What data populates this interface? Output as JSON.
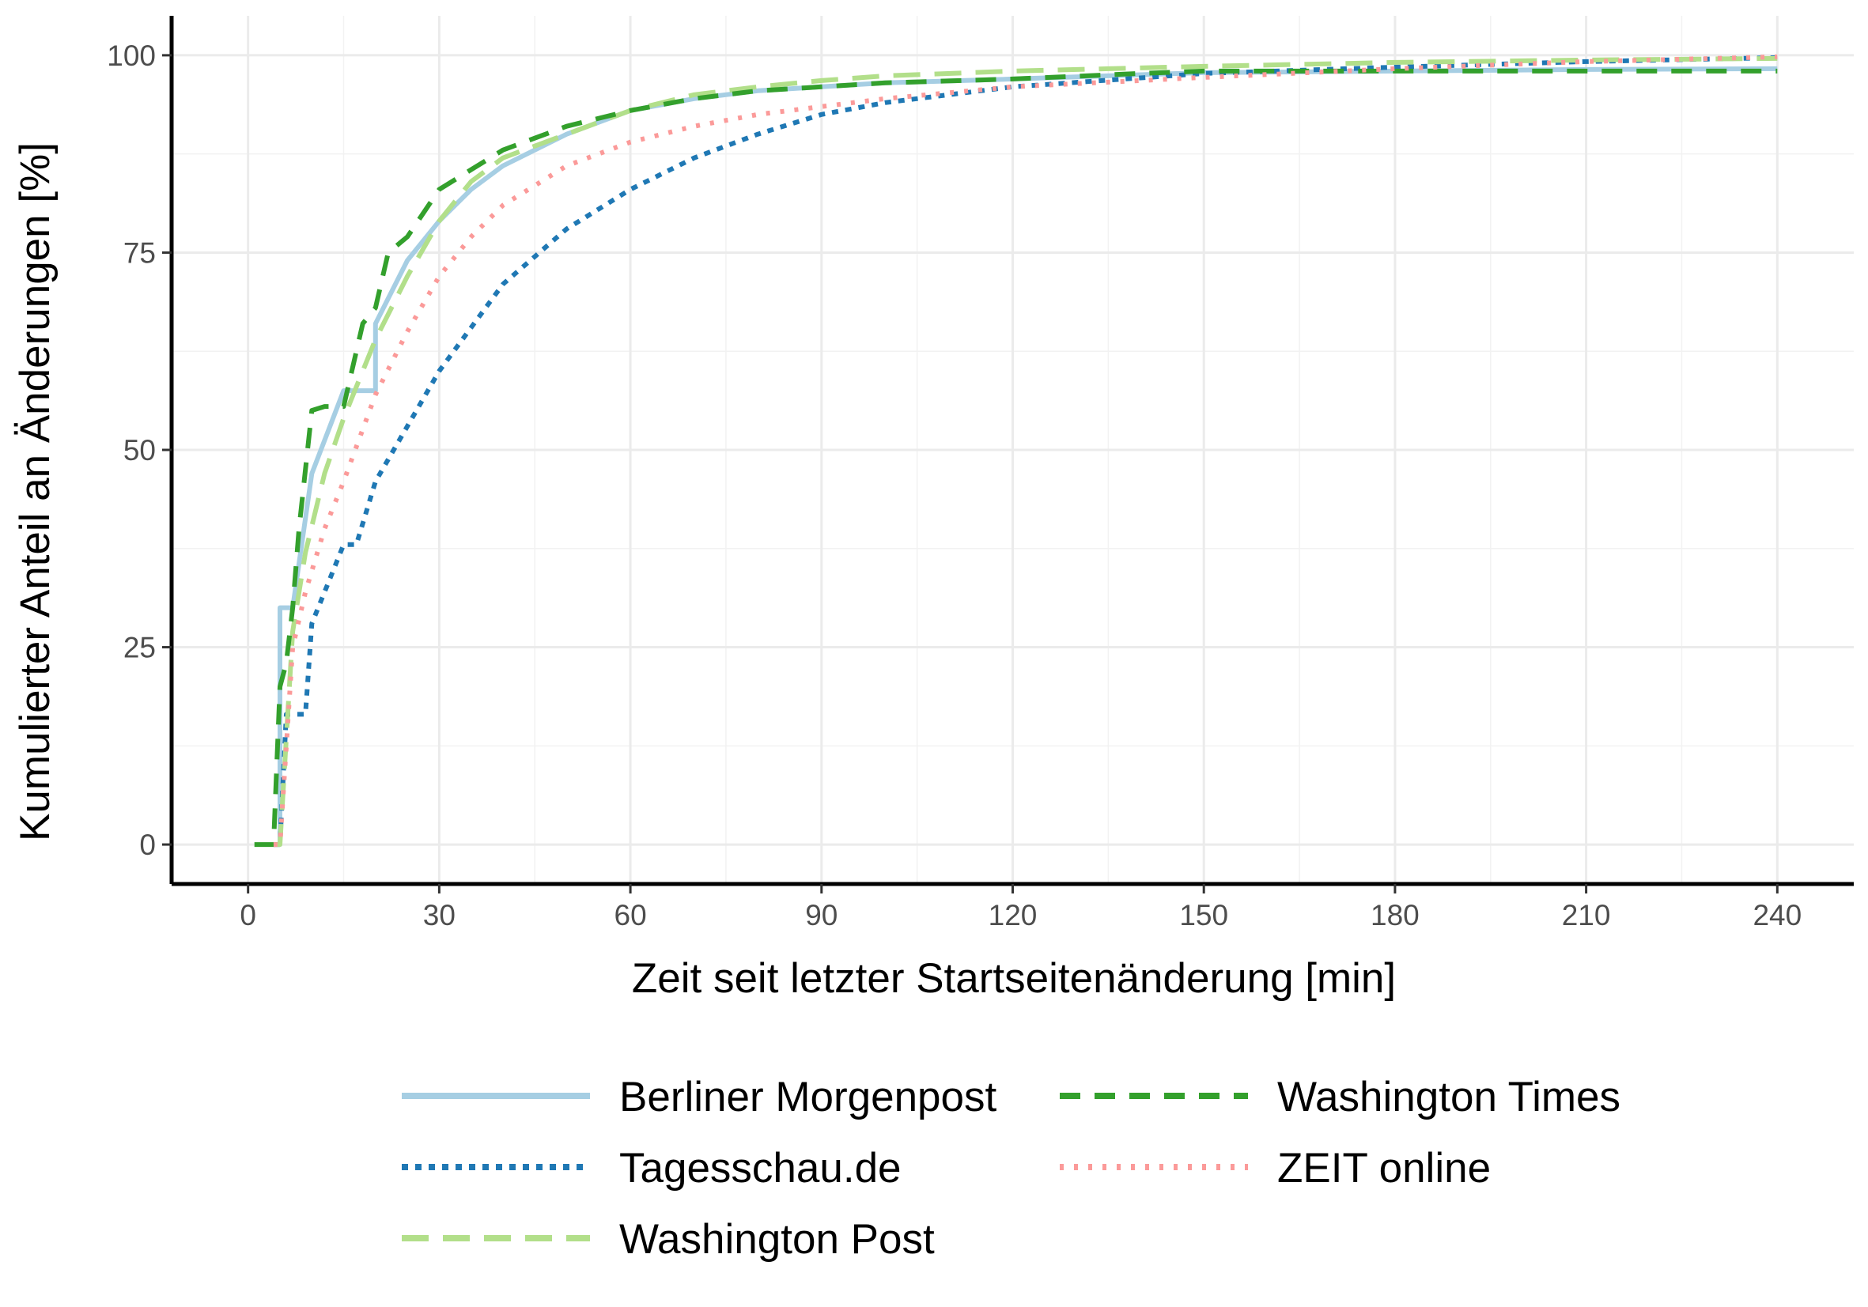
{
  "chart_data": {
    "type": "line",
    "title": "",
    "xlabel": "Zeit seit letzter Startseitenänderung  [min]",
    "ylabel": "Kumulierter Anteil an Änderungen [%]",
    "xlim": [
      -12,
      252
    ],
    "ylim": [
      -5,
      105
    ],
    "x_ticks": [
      0,
      30,
      60,
      90,
      120,
      150,
      180,
      210,
      240
    ],
    "x_tick_labels": [
      "0",
      "30",
      "60",
      "90",
      "120",
      "150",
      "180",
      "210",
      "240"
    ],
    "y_ticks": [
      0,
      25,
      50,
      75,
      100
    ],
    "y_tick_labels": [
      "0",
      "25",
      "50",
      "75",
      "100"
    ],
    "grid": true,
    "legend_position": "bottom",
    "series": [
      {
        "name": "Berliner Morgenpost",
        "color": "#a6cee3",
        "dash": "solid",
        "x": [
          4,
          5,
          5,
          7,
          10,
          15,
          20,
          20,
          25,
          30,
          35,
          40,
          50,
          60,
          70,
          80,
          90,
          100,
          120,
          150,
          180,
          210,
          240
        ],
        "y": [
          0,
          0,
          30,
          30,
          47,
          57.5,
          57.5,
          66,
          74,
          79,
          83,
          86,
          90,
          93,
          94.5,
          95.5,
          96,
          96.5,
          97,
          97.8,
          98,
          98.2,
          98.3
        ]
      },
      {
        "name": "Tagesschau.de",
        "color": "#1f78b4",
        "dash": "dotted",
        "x": [
          4,
          5,
          6,
          9,
          10,
          12,
          15,
          17,
          20,
          25,
          30,
          40,
          50,
          60,
          70,
          80,
          90,
          100,
          120,
          150,
          180,
          210,
          240
        ],
        "y": [
          0,
          0,
          16.5,
          16.5,
          28,
          32,
          38,
          38,
          46,
          53,
          60,
          71,
          78,
          83,
          87,
          90,
          92.5,
          94,
          96,
          97.7,
          98.5,
          99.2,
          99.7
        ]
      },
      {
        "name": "Washington Post",
        "color": "#b2df8a",
        "dash": "longdash",
        "x": [
          4,
          5,
          7,
          9,
          12,
          15,
          20,
          25,
          30,
          35,
          40,
          50,
          60,
          70,
          80,
          90,
          100,
          120,
          150,
          180,
          210,
          240
        ],
        "y": [
          0,
          0,
          27,
          37,
          47,
          54,
          64,
          72,
          79,
          84,
          87,
          90,
          93,
          95,
          96,
          96.8,
          97.4,
          98,
          98.6,
          99.1,
          99.4,
          99.6
        ]
      },
      {
        "name": "Washington Times",
        "color": "#33a02c",
        "dash": "dashed",
        "x": [
          1,
          4,
          5,
          6,
          7,
          8,
          10,
          12,
          15,
          18,
          20,
          22,
          25,
          30,
          35,
          40,
          45,
          50,
          60,
          70,
          80,
          90,
          100,
          120,
          140,
          150,
          180,
          210,
          240
        ],
        "y": [
          0,
          0,
          20,
          23,
          30,
          40,
          55,
          55.5,
          55.5,
          66,
          68,
          75,
          77,
          83,
          85.5,
          88,
          89.5,
          91,
          93,
          94.5,
          95.5,
          96,
          96.5,
          97,
          97.7,
          98,
          98,
          98,
          98
        ]
      },
      {
        "name": "ZEIT online",
        "color": "#fb9a99",
        "dash": "dotdense",
        "x": [
          4,
          5,
          7,
          9,
          12,
          15,
          20,
          25,
          30,
          35,
          40,
          50,
          60,
          70,
          80,
          90,
          100,
          120,
          150,
          180,
          210,
          240
        ],
        "y": [
          0,
          0,
          25,
          32,
          40,
          46,
          57,
          65,
          72,
          77,
          81,
          86,
          89,
          91,
          92.5,
          93.5,
          94.5,
          96,
          97.2,
          98.3,
          99.2,
          99.8
        ]
      }
    ]
  }
}
